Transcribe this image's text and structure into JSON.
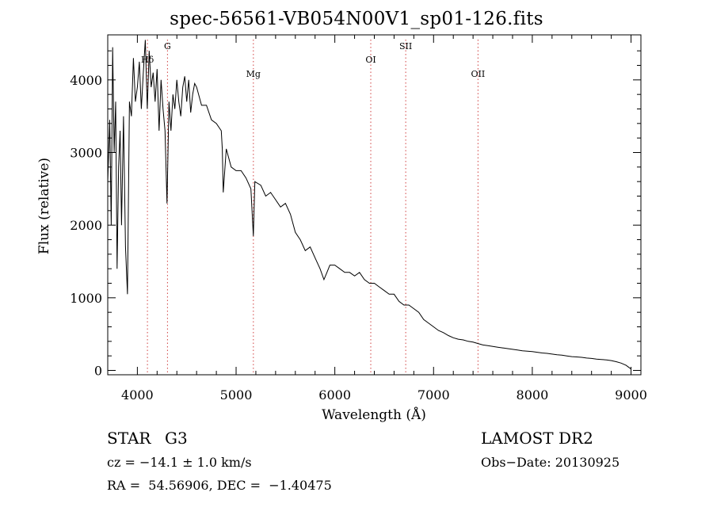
{
  "chart_data": {
    "type": "line",
    "title": "spec-56561-VB054N00V1_sp01-126.fits",
    "xlabel": "Wavelength (Å)",
    "ylabel": "Flux (relative)",
    "xlim": [
      3700,
      9100
    ],
    "ylim": [
      -60,
      4620
    ],
    "xticks": [
      4000,
      5000,
      6000,
      7000,
      8000,
      9000
    ],
    "xtick_labels": [
      "4000",
      "5000",
      "6000",
      "7000",
      "8000",
      "9000"
    ],
    "yticks": [
      0,
      1000,
      2000,
      3000,
      4000
    ],
    "ytick_labels": [
      "0",
      "1000",
      "2000",
      "3000",
      "4000"
    ],
    "grid": false,
    "lines": [
      {
        "label": "Hδ",
        "x": 4102
      },
      {
        "label": "G",
        "x": 4305
      },
      {
        "label": "Mg",
        "x": 5175
      },
      {
        "label": "OI",
        "x": 6364
      },
      {
        "label": "SII",
        "x": 6718
      },
      {
        "label": "OII",
        "x": 7450
      }
    ],
    "series": [
      {
        "x": [
          3700,
          3720,
          3735,
          3750,
          3765,
          3780,
          3795,
          3810,
          3825,
          3840,
          3860,
          3880,
          3900,
          3920,
          3940,
          3960,
          3980,
          4000,
          4020,
          4040,
          4060,
          4080,
          4100,
          4120,
          4140,
          4160,
          4180,
          4200,
          4220,
          4240,
          4260,
          4280,
          4300,
          4320,
          4340,
          4360,
          4380,
          4400,
          4420,
          4440,
          4460,
          4480,
          4500,
          4520,
          4540,
          4560,
          4580,
          4600,
          4650,
          4700,
          4750,
          4800,
          4850,
          4860,
          4870,
          4900,
          4950,
          5000,
          5050,
          5100,
          5150,
          5175,
          5190,
          5250,
          5300,
          5350,
          5400,
          5450,
          5500,
          5550,
          5600,
          5650,
          5700,
          5750,
          5800,
          5850,
          5890,
          5920,
          5950,
          6000,
          6050,
          6100,
          6150,
          6200,
          6250,
          6300,
          6350,
          6400,
          6450,
          6500,
          6550,
          6600,
          6650,
          6700,
          6750,
          6800,
          6850,
          6900,
          6950,
          7000,
          7050,
          7100,
          7150,
          7200,
          7250,
          7300,
          7350,
          7400,
          7450,
          7500,
          7550,
          7600,
          7650,
          7700,
          7750,
          7800,
          7850,
          7900,
          7950,
          8000,
          8050,
          8100,
          8150,
          8200,
          8250,
          8300,
          8350,
          8400,
          8450,
          8500,
          8550,
          8600,
          8650,
          8700,
          8750,
          8800,
          8850,
          8900,
          8950,
          9000
        ],
        "values": [
          2600,
          3450,
          2000,
          4450,
          3000,
          3700,
          1400,
          2800,
          3300,
          2000,
          3500,
          1700,
          1050,
          3700,
          3500,
          4300,
          3700,
          3900,
          4250,
          3600,
          4100,
          4550,
          3600,
          4400,
          3900,
          4100,
          3700,
          4150,
          3300,
          4000,
          3600,
          3300,
          2300,
          3700,
          3300,
          3800,
          3600,
          4000,
          3700,
          3500,
          3900,
          4050,
          3700,
          4000,
          3550,
          3800,
          3950,
          3900,
          3650,
          3650,
          3450,
          3400,
          3300,
          3050,
          2450,
          3050,
          2800,
          2750,
          2750,
          2650,
          2500,
          1850,
          2600,
          2550,
          2400,
          2450,
          2350,
          2250,
          2300,
          2150,
          1900,
          1800,
          1650,
          1700,
          1550,
          1400,
          1250,
          1350,
          1450,
          1450,
          1400,
          1350,
          1350,
          1300,
          1350,
          1250,
          1200,
          1200,
          1150,
          1100,
          1050,
          1050,
          950,
          900,
          900,
          850,
          800,
          700,
          650,
          600,
          550,
          520,
          480,
          450,
          430,
          420,
          400,
          390,
          370,
          350,
          340,
          330,
          320,
          310,
          300,
          290,
          280,
          270,
          265,
          260,
          250,
          240,
          235,
          225,
          215,
          210,
          200,
          190,
          185,
          180,
          170,
          165,
          155,
          150,
          145,
          135,
          120,
          100,
          70,
          20
        ]
      }
    ]
  },
  "info": {
    "star_label": "STAR",
    "subclass": "G3",
    "survey": "LAMOST DR2",
    "cz": "cz = −14.1 ± 1.0 km/s",
    "obs_date": "Obs−Date: 20130925",
    "coords": "RA =  54.56906, DEC =  −1.40475"
  }
}
